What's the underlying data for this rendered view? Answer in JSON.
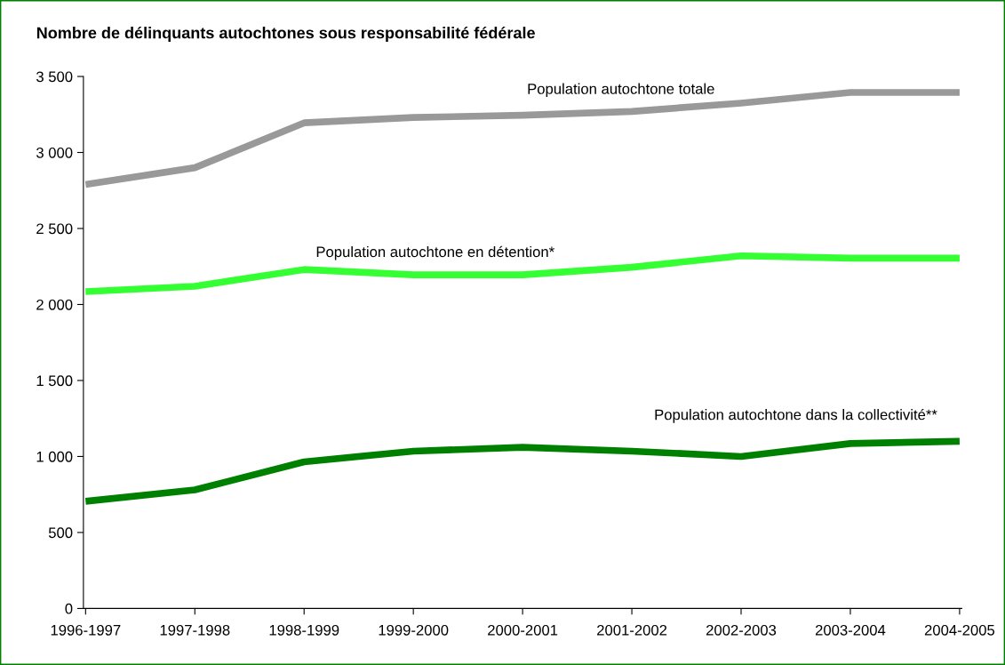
{
  "chart_data": {
    "type": "line",
    "title": "Nombre de délinquants autochtones sous responsabilité fédérale",
    "categories": [
      "1996-1997",
      "1997-1998",
      "1998-1999",
      "1999-2000",
      "2000-2001",
      "2001-2002",
      "2002-2003",
      "2003-2004",
      "2004-2005"
    ],
    "series": [
      {
        "name": "Population autochtone totale",
        "color": "#999999",
        "values": [
          2790,
          2900,
          3195,
          3230,
          3245,
          3270,
          3325,
          3395,
          3395
        ]
      },
      {
        "name": "Population autochtone en détention*",
        "color": "#33ff33",
        "values": [
          2085,
          2120,
          2230,
          2195,
          2195,
          2245,
          2320,
          2305,
          2305
        ]
      },
      {
        "name": "Population autochtone dans la collectivité**",
        "color": "#008000",
        "values": [
          705,
          780,
          965,
          1035,
          1060,
          1035,
          1000,
          1085,
          1100
        ]
      }
    ],
    "ylim": [
      0,
      3500
    ],
    "yticks": [
      0,
      {
        "value": 500,
        "label": "500"
      },
      {
        "value": 1000,
        "label": "1 000"
      },
      {
        "value": 1500,
        "label": "1 500"
      },
      {
        "value": 2000,
        "label": "2 000"
      },
      {
        "value": 2500,
        "label": "2 500"
      },
      {
        "value": 3000,
        "label": "3 000"
      },
      {
        "value": 3500,
        "label": "3 500"
      }
    ],
    "grid": false,
    "legend": false,
    "marker": "none",
    "line_style": "solid"
  }
}
